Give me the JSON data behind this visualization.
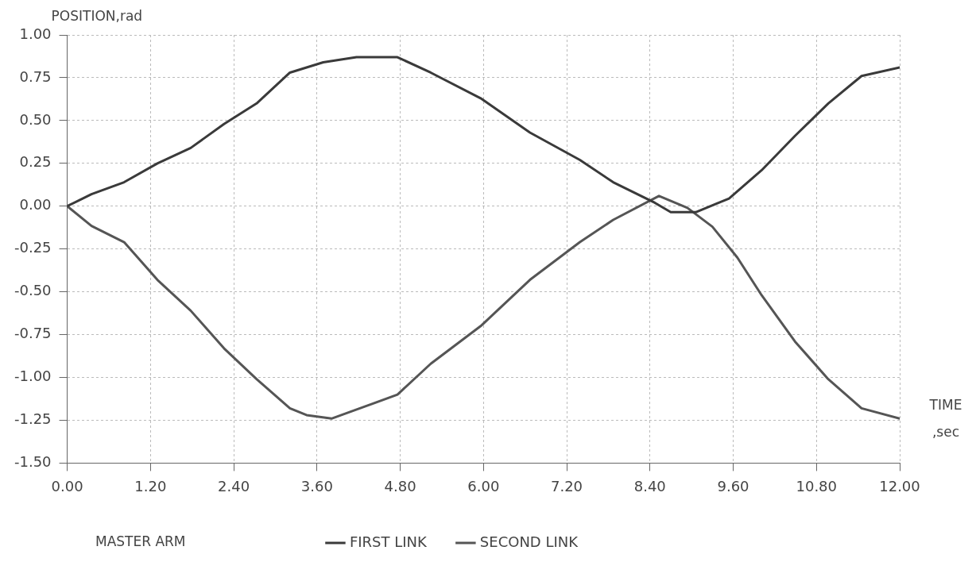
{
  "chart_data": {
    "type": "line",
    "ylabel": "POSITION,rad",
    "xlabel": "TIME ,sec",
    "annotations": [
      "MASTER ARM"
    ],
    "xlim": [
      0,
      12
    ],
    "xticks": [
      {
        "value": 0,
        "label": "0.00"
      },
      {
        "value": 1.2,
        "label": "1.20"
      },
      {
        "value": 2.4,
        "label": "2.40"
      },
      {
        "value": 3.6,
        "label": "3.60"
      },
      {
        "value": 4.8,
        "label": "4.80"
      },
      {
        "value": 6,
        "label": "6.00"
      },
      {
        "value": 7.2,
        "label": "7.20"
      },
      {
        "value": 8.4,
        "label": "8.40"
      },
      {
        "value": 9.6,
        "label": "9.60"
      },
      {
        "value": 10.8,
        "label": "10.80"
      },
      {
        "value": 12,
        "label": "12.00"
      }
    ],
    "ylim": [
      -1.5,
      1
    ],
    "yticks": [
      {
        "value": 1,
        "label": "1.00"
      },
      {
        "value": 0.75,
        "label": "0.75"
      },
      {
        "value": 0.5,
        "label": "0.50"
      },
      {
        "value": 0.25,
        "label": "0.25"
      },
      {
        "value": 0,
        "label": "0.00"
      },
      {
        "value": -0.25,
        "label": "-0.25"
      },
      {
        "value": -0.5,
        "label": "-0.50"
      },
      {
        "value": -0.75,
        "label": "-0.75"
      },
      {
        "value": -1,
        "label": "-1.00"
      },
      {
        "value": -1.25,
        "label": "-1.25"
      },
      {
        "value": -1.5,
        "label": "-1.50"
      }
    ],
    "grid": true,
    "legend": "bottom",
    "marker": "none",
    "line_style": "solid",
    "series": [
      {
        "name": "FIRST LINK",
        "color": "#3a3a3a",
        "x": [
          0,
          0.35,
          0.82,
          1.3,
          1.78,
          2.26,
          2.73,
          3.21,
          3.69,
          4.17,
          4.76,
          5.24,
          5.96,
          6.67,
          7.39,
          7.87,
          8.47,
          8.7,
          9.06,
          9.54,
          10.01,
          10.49,
          10.97,
          11.45,
          12
        ],
        "values": [
          0,
          0.07,
          0.14,
          0.25,
          0.34,
          0.48,
          0.6,
          0.78,
          0.84,
          0.87,
          0.87,
          0.78,
          0.63,
          0.43,
          0.27,
          0.14,
          0.02,
          -0.035,
          -0.035,
          0.045,
          0.21,
          0.41,
          0.6,
          0.76,
          0.81
        ]
      },
      {
        "name": "SECOND LINK",
        "color": "#555555",
        "x": [
          0,
          0.35,
          0.82,
          1.3,
          1.78,
          2.26,
          2.73,
          3.21,
          3.45,
          3.81,
          4.29,
          4.76,
          5.24,
          5.96,
          6.67,
          7.39,
          7.87,
          8.53,
          8.94,
          9.3,
          9.66,
          10.01,
          10.49,
          10.97,
          11.45,
          12
        ],
        "values": [
          0,
          -0.115,
          -0.21,
          -0.43,
          -0.61,
          -0.83,
          -1.01,
          -1.18,
          -1.22,
          -1.24,
          -1.17,
          -1.1,
          -0.92,
          -0.7,
          -0.43,
          -0.21,
          -0.08,
          0.06,
          -0.01,
          -0.12,
          -0.3,
          -0.52,
          -0.79,
          -1.01,
          -1.18,
          -1.24
        ]
      }
    ]
  }
}
